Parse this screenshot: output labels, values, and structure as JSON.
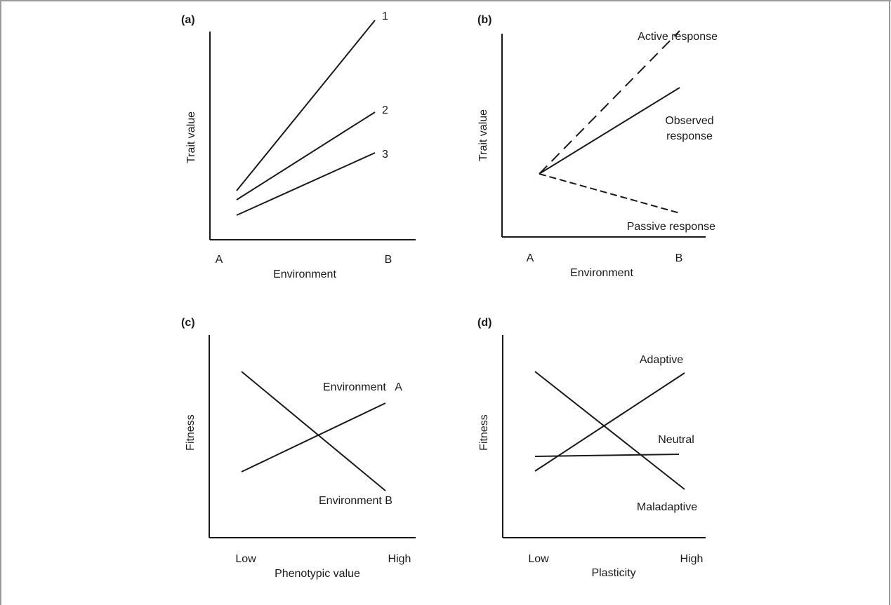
{
  "panels": {
    "a": {
      "label": "(a)",
      "ylabel": "Trait  value",
      "xlabel": "Environment",
      "ticks": [
        "A",
        "B"
      ],
      "lines": [
        {
          "name": "1",
          "start": 0.3,
          "end": 1.0
        },
        {
          "name": "2",
          "start": 0.25,
          "end": 0.65
        },
        {
          "name": "3",
          "start": 0.2,
          "end": 0.48
        }
      ]
    },
    "b": {
      "label": "(b)",
      "ylabel": "Trait  value",
      "xlabel": "Environment",
      "ticks": [
        "A",
        "B"
      ],
      "active_label": "Active response",
      "observed_label_1": "Observed",
      "observed_label_2": "response",
      "passive_label": "Passive response"
    },
    "c": {
      "label": "(c)",
      "ylabel": "Fitness",
      "xlabel": "Phenotypic value",
      "ticks": [
        "Low",
        "High"
      ],
      "envA_label": "Environment   A",
      "envB_label": "Environment B"
    },
    "d": {
      "label": "(d)",
      "ylabel": "Fitness",
      "xlabel": "Plasticity",
      "ticks": [
        "Low",
        "High"
      ],
      "adaptive_label": "Adaptive",
      "neutral_label": "Neutral",
      "maladaptive_label": "Maladaptive"
    }
  },
  "colors": {
    "line": "#1a1a1a",
    "frame": "#9a9a9a",
    "background": "#ffffff"
  }
}
